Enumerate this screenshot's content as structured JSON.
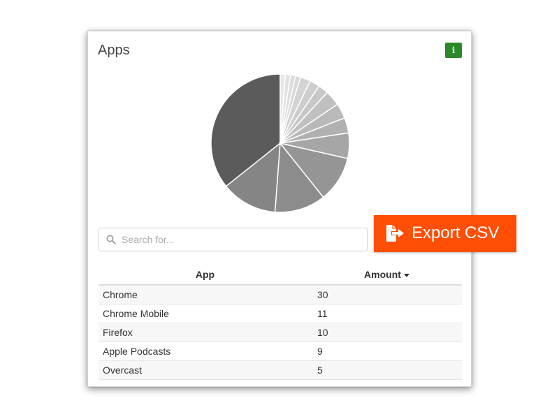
{
  "card": {
    "title": "Apps",
    "info_label": "i"
  },
  "search": {
    "placeholder": "Search for...",
    "value": ""
  },
  "table": {
    "columns": [
      "App",
      "Amount"
    ],
    "sort_column": "Amount",
    "sort_direction": "desc",
    "rows": [
      {
        "app": "Chrome",
        "amount": "30"
      },
      {
        "app": "Chrome Mobile",
        "amount": "11"
      },
      {
        "app": "Firefox",
        "amount": "10"
      },
      {
        "app": "Apple Podcasts",
        "amount": "9"
      },
      {
        "app": "Overcast",
        "amount": "5"
      }
    ]
  },
  "export": {
    "label": "Export CSV",
    "color": "#ff4f06"
  },
  "icons": {
    "info": "info-icon",
    "search": "search-icon",
    "export": "export-file-icon",
    "sort": "caret-down-icon"
  },
  "chart_data": {
    "type": "pie",
    "values": [
      30,
      11,
      10,
      9,
      5,
      3,
      3,
      3,
      2,
      2,
      2,
      1,
      1,
      1,
      1
    ],
    "colors": [
      "#5b5b5b",
      "#858585",
      "#8c8c8c",
      "#959595",
      "#a6a6a6",
      "#b0b0b0",
      "#b9b9b9",
      "#c0c0c0",
      "#c7c7c7",
      "#cdcdcd",
      "#d3d3d3",
      "#d8d8d8",
      "#dddddd",
      "#e2e2e2",
      "#e7e7e7"
    ]
  }
}
